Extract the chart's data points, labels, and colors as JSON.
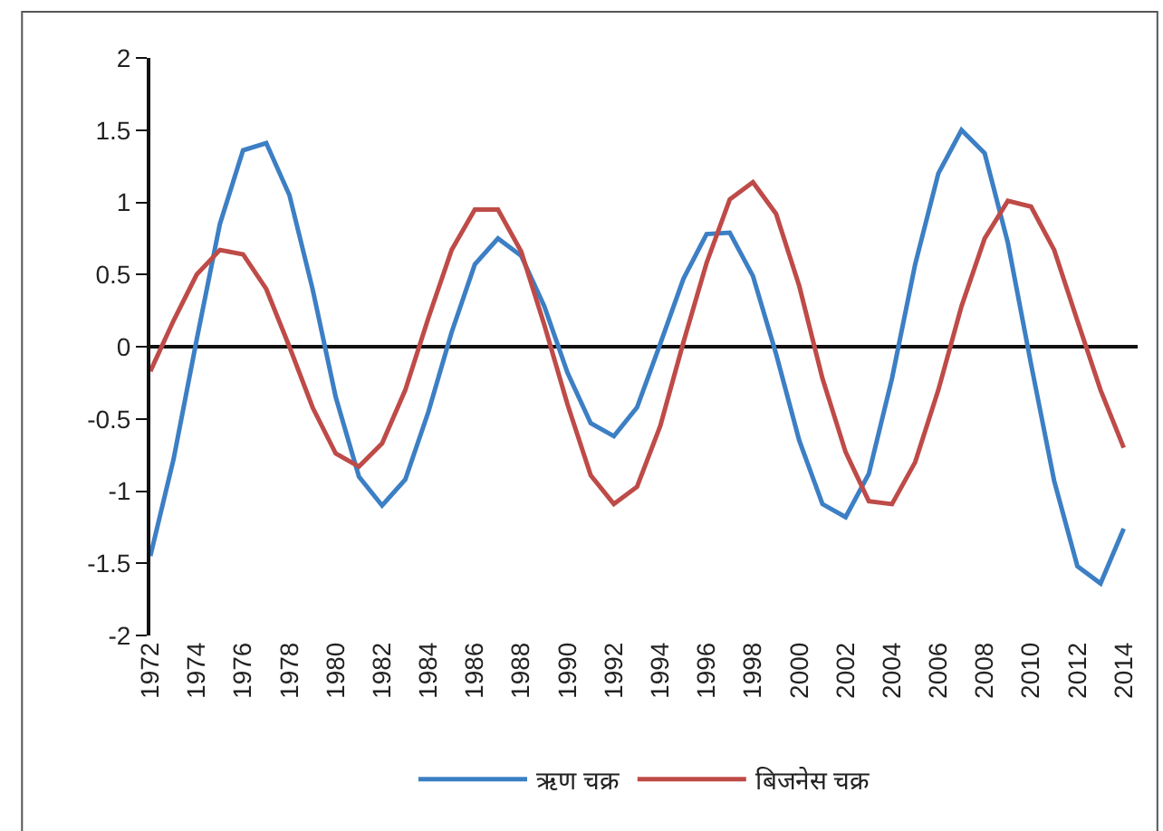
{
  "chart_data": {
    "type": "line",
    "x": [
      1972,
      1973,
      1974,
      1975,
      1976,
      1977,
      1978,
      1979,
      1980,
      1981,
      1982,
      1983,
      1984,
      1985,
      1986,
      1987,
      1988,
      1989,
      1990,
      1991,
      1992,
      1993,
      1994,
      1995,
      1996,
      1997,
      1998,
      1999,
      2000,
      2001,
      2002,
      2003,
      2004,
      2005,
      2006,
      2007,
      2008,
      2009,
      2010,
      2011,
      2012,
      2013,
      2014
    ],
    "series": [
      {
        "name": "ऋण चक्र",
        "color": "#3c7fc4",
        "values": [
          -1.45,
          -0.78,
          0.05,
          0.85,
          1.36,
          1.41,
          1.05,
          0.4,
          -0.35,
          -0.9,
          -1.1,
          -0.92,
          -0.45,
          0.1,
          0.57,
          0.75,
          0.63,
          0.28,
          -0.18,
          -0.53,
          -0.62,
          -0.42,
          0.02,
          0.47,
          0.78,
          0.79,
          0.49,
          -0.05,
          -0.65,
          -1.09,
          -1.18,
          -0.88,
          -0.22,
          0.57,
          1.2,
          1.5,
          1.34,
          0.72,
          -0.12,
          -0.93,
          -1.52,
          -1.64,
          -1.26
        ]
      },
      {
        "name": "बिजनेस चक्र",
        "color": "#be4b48",
        "values": [
          -0.17,
          0.18,
          0.5,
          0.67,
          0.64,
          0.4,
          0.0,
          -0.42,
          -0.74,
          -0.83,
          -0.67,
          -0.3,
          0.2,
          0.67,
          0.95,
          0.95,
          0.66,
          0.15,
          -0.4,
          -0.89,
          -1.09,
          -0.97,
          -0.55,
          0.03,
          0.58,
          1.02,
          1.14,
          0.92,
          0.42,
          -0.22,
          -0.73,
          -1.07,
          -1.09,
          -0.8,
          -0.3,
          0.28,
          0.75,
          1.01,
          0.97,
          0.67,
          0.18,
          -0.3,
          -0.7
        ]
      }
    ],
    "xlim": [
      1972,
      2014.6
    ],
    "xticks": [
      1972,
      1974,
      1976,
      1978,
      1980,
      1982,
      1984,
      1986,
      1988,
      1990,
      1992,
      1994,
      1996,
      1998,
      2000,
      2002,
      2004,
      2006,
      2008,
      2010,
      2012,
      2014
    ],
    "ylim": [
      -2,
      2
    ],
    "yticks": [
      {
        "value": -2,
        "label": "-2"
      },
      {
        "value": -1.5,
        "label": "-1.5"
      },
      {
        "value": -1,
        "label": "-1"
      },
      {
        "value": -0.5,
        "label": "-0.5"
      },
      0,
      0.5,
      1,
      1.5,
      2
    ],
    "ref_lines": [
      {
        "axis": "y",
        "value": 0,
        "color": "#111111"
      }
    ],
    "legend": "bottom",
    "marker": "none",
    "line_style": "solid"
  }
}
